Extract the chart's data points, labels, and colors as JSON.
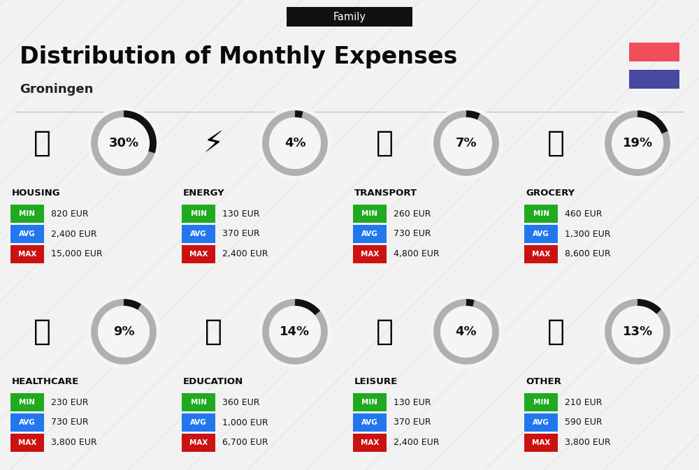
{
  "title": "Distribution of Monthly Expenses",
  "subtitle": "Groningen",
  "family_label": "Family",
  "bg_color": "#f2f2f2",
  "header_bg": "#111111",
  "header_text_color": "#ffffff",
  "title_color": "#0a0a0a",
  "subtitle_color": "#222222",
  "flag_red": "#f04e5a",
  "flag_blue": "#4848a0",
  "categories": [
    {
      "name": "HOUSING",
      "pct": 30,
      "min_val": "820 EUR",
      "avg_val": "2,400 EUR",
      "max_val": "15,000 EUR",
      "row": 0,
      "col": 0,
      "icon": "🏢"
    },
    {
      "name": "ENERGY",
      "pct": 4,
      "min_val": "130 EUR",
      "avg_val": "370 EUR",
      "max_val": "2,400 EUR",
      "row": 0,
      "col": 1,
      "icon": "⚡"
    },
    {
      "name": "TRANSPORT",
      "pct": 7,
      "min_val": "260 EUR",
      "avg_val": "730 EUR",
      "max_val": "4,800 EUR",
      "row": 0,
      "col": 2,
      "icon": "🚌"
    },
    {
      "name": "GROCERY",
      "pct": 19,
      "min_val": "460 EUR",
      "avg_val": "1,300 EUR",
      "max_val": "8,600 EUR",
      "row": 0,
      "col": 3,
      "icon": "🫙"
    },
    {
      "name": "HEALTHCARE",
      "pct": 9,
      "min_val": "230 EUR",
      "avg_val": "730 EUR",
      "max_val": "3,800 EUR",
      "row": 1,
      "col": 0,
      "icon": "🩺"
    },
    {
      "name": "EDUCATION",
      "pct": 14,
      "min_val": "360 EUR",
      "avg_val": "1,000 EUR",
      "max_val": "6,700 EUR",
      "row": 1,
      "col": 1,
      "icon": "🎓"
    },
    {
      "name": "LEISURE",
      "pct": 4,
      "min_val": "130 EUR",
      "avg_val": "370 EUR",
      "max_val": "2,400 EUR",
      "row": 1,
      "col": 2,
      "icon": "🛍️"
    },
    {
      "name": "OTHER",
      "pct": 13,
      "min_val": "210 EUR",
      "avg_val": "590 EUR",
      "max_val": "3,800 EUR",
      "row": 1,
      "col": 3,
      "icon": "👜"
    }
  ],
  "min_color": "#1faa1f",
  "avg_color": "#2277ee",
  "max_color": "#cc1111",
  "label_text_color": "#ffffff",
  "value_text_color": "#111111",
  "circle_border_color": "#b0b0b0",
  "circle_fill_color": "#111111",
  "circle_text_color": "#111111"
}
